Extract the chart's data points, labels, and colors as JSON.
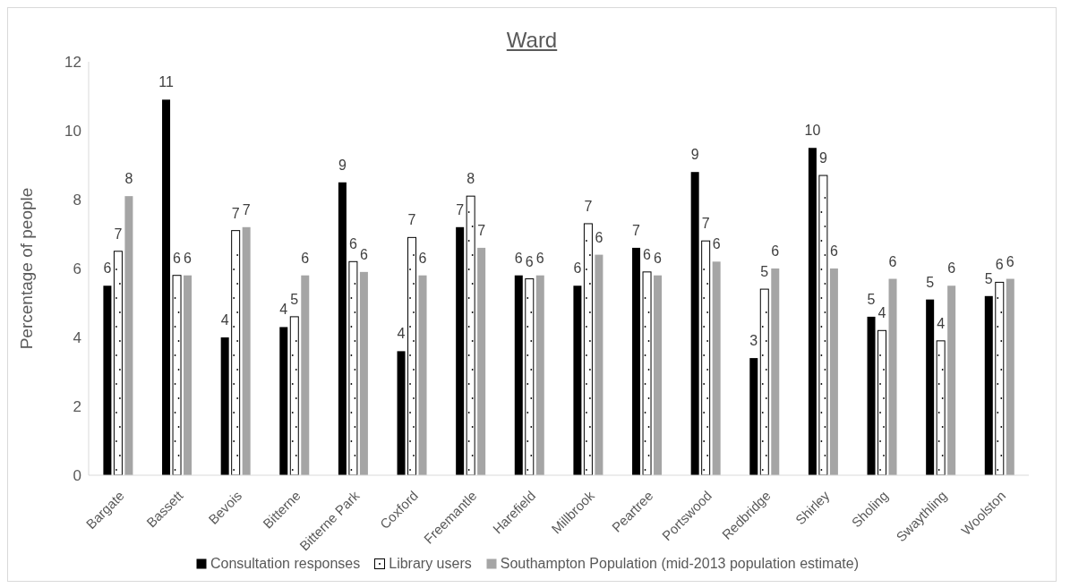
{
  "chart_data": {
    "type": "bar",
    "title": "Ward",
    "ylabel": "Percentage of people",
    "categories": [
      "Bargate",
      "Bassett",
      "Bevois",
      "Bitterne",
      "Bitterne Park",
      "Coxford",
      "Freemantle",
      "Harefield",
      "Millbrook",
      "Peartree",
      "Portswood",
      "Redbridge",
      "Shirley",
      "Sholing",
      "Swaythling",
      "Woolston"
    ],
    "series": [
      {
        "name": "Consultation responses",
        "color": "#000000",
        "values": [
          5.5,
          10.9,
          4.0,
          4.3,
          8.5,
          3.6,
          7.2,
          5.8,
          5.5,
          6.6,
          8.8,
          3.4,
          9.5,
          4.6,
          5.1,
          5.2
        ],
        "value_labels": [
          "6",
          "11",
          "4",
          "4",
          "9",
          "4",
          "7",
          "6",
          "6",
          "7",
          "9",
          "3",
          "10",
          "5",
          "5",
          "5"
        ]
      },
      {
        "name": "Library users",
        "color": "#ffffff",
        "values": [
          6.5,
          5.8,
          7.1,
          4.6,
          6.2,
          6.9,
          8.1,
          5.7,
          7.3,
          5.9,
          6.8,
          5.4,
          8.7,
          4.2,
          3.9,
          5.6
        ],
        "value_labels": [
          "7",
          "6",
          "7",
          "5",
          "6",
          "7",
          "8",
          "6",
          "7",
          "6",
          "7",
          "5",
          "9",
          "4",
          "4",
          "6"
        ]
      },
      {
        "name": "Southampton Population (mid-2013 population estimate)",
        "color": "#a5a5a5",
        "values": [
          8.1,
          5.8,
          7.2,
          5.8,
          5.9,
          5.8,
          6.6,
          5.8,
          6.4,
          5.8,
          6.2,
          6.0,
          6.0,
          5.7,
          5.5,
          5.7
        ],
        "value_labels": [
          "8",
          "6",
          "7",
          "6",
          "6",
          "6",
          "7",
          "6",
          "6",
          "6",
          "6",
          "6",
          "6",
          "6",
          "6",
          "6"
        ]
      }
    ],
    "ylim": [
      0,
      12
    ],
    "yticks": [
      0,
      2,
      4,
      6,
      8,
      10,
      12
    ],
    "legend": "bottom"
  }
}
